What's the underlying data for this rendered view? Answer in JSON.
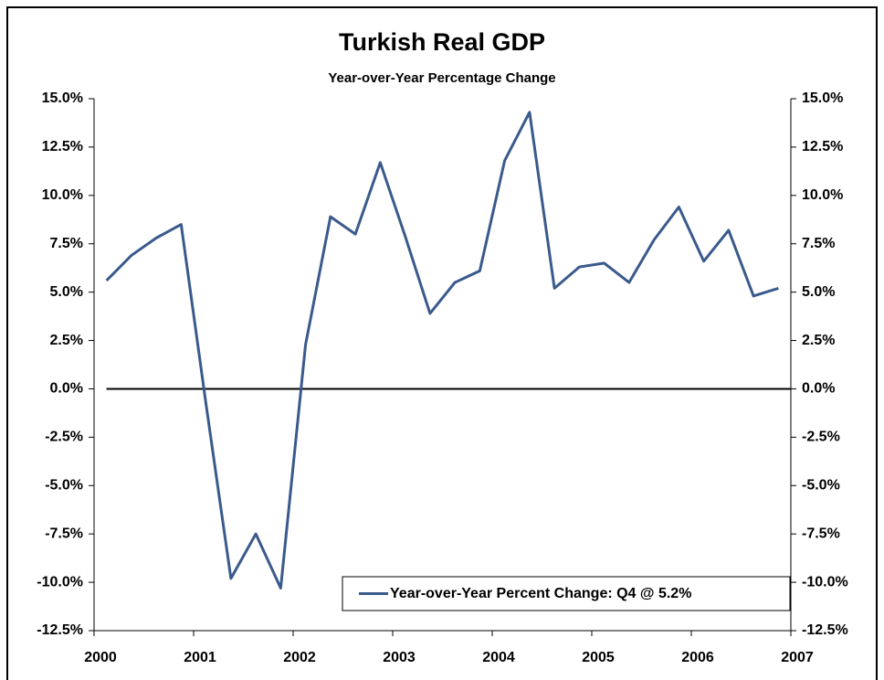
{
  "chart_data": {
    "type": "line",
    "title": "Turkish Real GDP",
    "subtitle": "Year-over-Year Percentage Change",
    "x": [
      2000.125,
      2000.375,
      2000.625,
      2000.875,
      2001.125,
      2001.375,
      2001.625,
      2001.875,
      2002.125,
      2002.375,
      2002.625,
      2002.875,
      2003.125,
      2003.375,
      2003.625,
      2003.875,
      2004.125,
      2004.375,
      2004.625,
      2004.875,
      2005.125,
      2005.375,
      2005.625,
      2005.875,
      2006.125,
      2006.375,
      2006.625,
      2006.875
    ],
    "series": [
      {
        "name": "Year-over-Year Percent Change: Q4 @ 5.2%",
        "color": "#3a5a8c",
        "values": [
          5.6,
          6.9,
          7.8,
          8.5,
          -0.8,
          -9.8,
          -7.5,
          -10.3,
          2.3,
          8.9,
          8.0,
          11.7,
          7.9,
          3.9,
          5.5,
          6.1,
          11.8,
          14.3,
          5.2,
          6.3,
          6.5,
          5.5,
          7.7,
          9.4,
          6.6,
          8.2,
          4.8,
          5.2
        ]
      }
    ],
    "xlim": [
      2000,
      2007
    ],
    "xticks": [
      2000,
      2001,
      2002,
      2003,
      2004,
      2005,
      2006,
      2007
    ],
    "ylim": [
      -12.5,
      15
    ],
    "yticks": [
      {
        "value": -12.5,
        "label": "-12.5%"
      },
      {
        "value": -10,
        "label": "-10.0%"
      },
      {
        "value": -7.5,
        "label": "-7.5%"
      },
      {
        "value": -5,
        "label": "-5.0%"
      },
      {
        "value": -2.5,
        "label": "-2.5%"
      },
      {
        "value": 0,
        "label": "0.0%"
      },
      {
        "value": 2.5,
        "label": "2.5%"
      },
      {
        "value": 5,
        "label": "5.0%"
      },
      {
        "value": 7.5,
        "label": "7.5%"
      },
      {
        "value": 10,
        "label": "10.0%"
      },
      {
        "value": 12.5,
        "label": "12.5%"
      },
      {
        "value": 15,
        "label": "15.0%"
      }
    ],
    "y2lim": [
      -12.5,
      15
    ],
    "y2ticks": [
      {
        "value": -12.5,
        "label": "-12.5%"
      },
      {
        "value": -10,
        "label": "-10.0%"
      },
      {
        "value": -7.5,
        "label": "-7.5%"
      },
      {
        "value": -5,
        "label": "-5.0%"
      },
      {
        "value": -2.5,
        "label": "-2.5%"
      },
      {
        "value": 0,
        "label": "0.0%"
      },
      {
        "value": 2.5,
        "label": "2.5%"
      },
      {
        "value": 5,
        "label": "5.0%"
      },
      {
        "value": 7.5,
        "label": "7.5%"
      },
      {
        "value": 10,
        "label": "10.0%"
      },
      {
        "value": 12.5,
        "label": "12.5%"
      },
      {
        "value": 15,
        "label": "15.0%"
      }
    ],
    "legend": "lower right"
  }
}
